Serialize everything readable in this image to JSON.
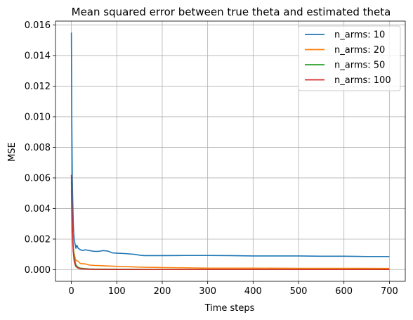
{
  "chart_data": {
    "type": "line",
    "title": "Mean squared error between true theta and estimated theta",
    "xlabel": "Time steps",
    "ylabel": "MSE",
    "xlim": [
      -35,
      735
    ],
    "ylim": [
      -0.00076,
      0.01625
    ],
    "xticks": [
      0,
      100,
      200,
      300,
      400,
      500,
      600,
      700
    ],
    "yticks": [
      0.0,
      0.002,
      0.004,
      0.006,
      0.008,
      0.01,
      0.012,
      0.014,
      0.016
    ],
    "ytick_decimals": 3,
    "grid": true,
    "legend_position": "top-right",
    "series": [
      {
        "name": "n_arms: 10",
        "color": "#1f77b4",
        "x": [
          0,
          1,
          2,
          3,
          4,
          5,
          6,
          8,
          10,
          12,
          15,
          20,
          25,
          30,
          40,
          50,
          60,
          70,
          80,
          90,
          100,
          120,
          140,
          150,
          160,
          200,
          250,
          300,
          350,
          400,
          450,
          500,
          550,
          600,
          650,
          700
        ],
        "y": [
          0.0155,
          0.0095,
          0.006,
          0.0045,
          0.0032,
          0.0025,
          0.002,
          0.0017,
          0.0014,
          0.0016,
          0.0014,
          0.0013,
          0.00125,
          0.0013,
          0.00125,
          0.0012,
          0.0012,
          0.00125,
          0.00122,
          0.0011,
          0.00108,
          0.00105,
          0.001,
          0.00095,
          0.00092,
          0.00092,
          0.00093,
          0.00093,
          0.00092,
          0.0009,
          0.0009,
          0.0009,
          0.00088,
          0.00088,
          0.00086,
          0.00086
        ]
      },
      {
        "name": "n_arms: 20",
        "color": "#ff7f0e",
        "x": [
          0,
          1,
          2,
          3,
          5,
          8,
          10,
          15,
          20,
          30,
          40,
          50,
          75,
          100,
          150,
          200,
          250,
          300,
          400,
          500,
          600,
          700
        ],
        "y": [
          0.0052,
          0.0035,
          0.0025,
          0.0018,
          0.0012,
          0.0008,
          0.0006,
          0.00055,
          0.0004,
          0.00038,
          0.0003,
          0.00028,
          0.00025,
          0.00022,
          0.00017,
          0.00014,
          0.00012,
          0.0001,
          0.0001,
          9e-05,
          9e-05,
          8e-05
        ]
      },
      {
        "name": "n_arms: 50",
        "color": "#2ca02c",
        "x": [
          0,
          1,
          2,
          3,
          4,
          5,
          6,
          8,
          10,
          15,
          20,
          30,
          40,
          50,
          100,
          200,
          300,
          400,
          500,
          600,
          700
        ],
        "y": [
          0.0058,
          0.004,
          0.0027,
          0.0022,
          0.0016,
          0.0011,
          0.0008,
          0.00055,
          0.0003,
          0.00015,
          0.0001,
          7e-05,
          5e-05,
          4e-05,
          3e-05,
          2e-05,
          2e-05,
          2e-05,
          2e-05,
          2e-05,
          2e-05
        ]
      },
      {
        "name": "n_arms: 100",
        "color": "#d62728",
        "x": [
          0,
          1,
          2,
          3,
          4,
          5,
          6,
          8,
          10,
          15,
          20,
          30,
          40,
          50,
          100,
          200,
          300,
          400,
          500,
          600,
          700
        ],
        "y": [
          0.0062,
          0.0045,
          0.003,
          0.0018,
          0.0012,
          0.0009,
          0.0006,
          0.00035,
          0.0002,
          0.0001,
          6e-05,
          4e-05,
          3e-05,
          2e-05,
          1e-05,
          1e-05,
          1e-05,
          1e-05,
          1e-05,
          1e-05,
          1e-05
        ]
      }
    ]
  }
}
